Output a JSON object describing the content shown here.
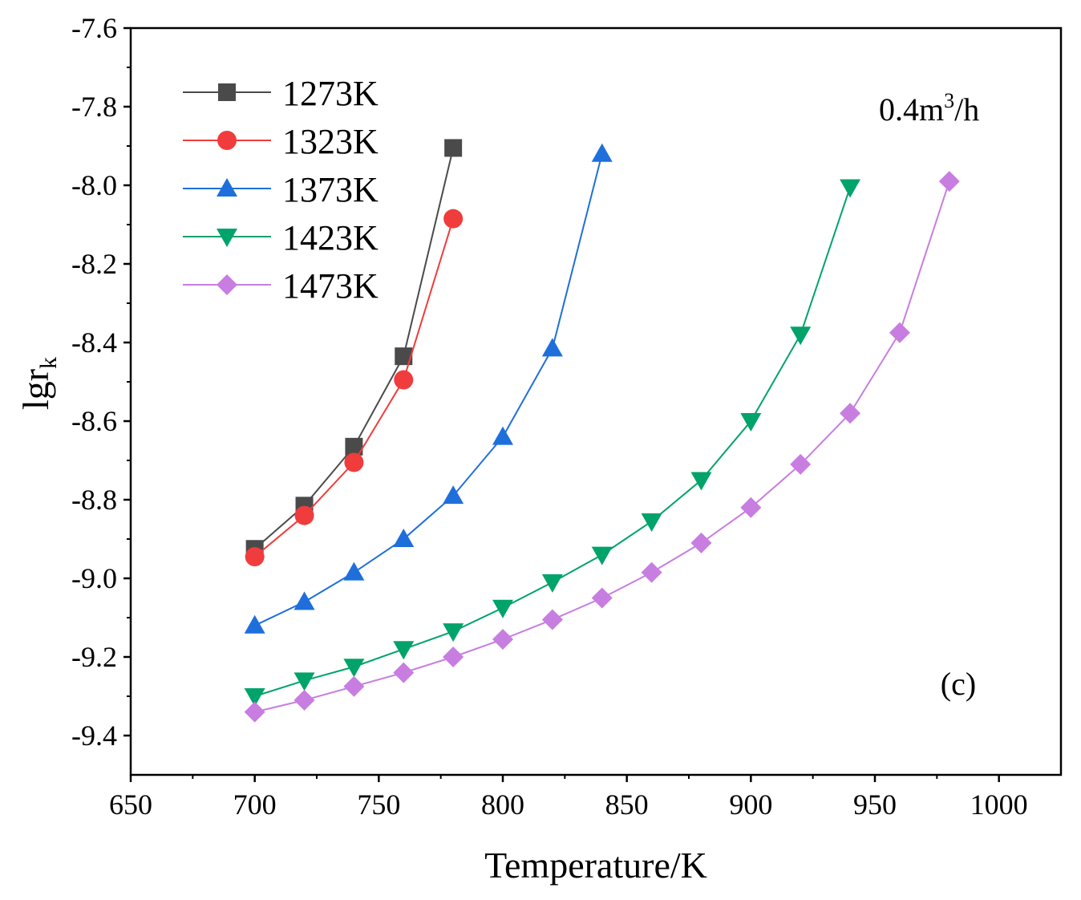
{
  "chart_data": {
    "type": "line",
    "title": "",
    "xlabel": "Temperature/K",
    "ylabel_main": "lgr",
    "ylabel_sub": "k",
    "xlim": [
      650,
      1025
    ],
    "ylim": [
      -9.5,
      -7.6
    ],
    "xticks": [
      650,
      700,
      750,
      800,
      850,
      900,
      950,
      1000
    ],
    "xtick_labels": [
      "650",
      "700",
      "750",
      "800",
      "850",
      "900",
      "950",
      "1000"
    ],
    "yticks": [
      -7.6,
      -7.8,
      -8.0,
      -8.2,
      -8.4,
      -8.6,
      -8.8,
      -9.0,
      -9.2,
      -9.4
    ],
    "ytick_labels": [
      "-7.6",
      "-7.8",
      "-8.0",
      "-8.2",
      "-8.4",
      "-8.6",
      "-8.8",
      "-9.0",
      "-9.2",
      "-9.4"
    ],
    "grid": false,
    "legend_position": "top-left",
    "annotation_flow": {
      "base": "0.4m",
      "sup": "3",
      "rest": "/h"
    },
    "annotation_panel": "(c)",
    "series": [
      {
        "name": "1273K",
        "color": "#4a4a4a",
        "marker": "square",
        "x": [
          700,
          720,
          740,
          760,
          780
        ],
        "y": [
          -8.925,
          -8.815,
          -8.665,
          -8.435,
          -7.905
        ]
      },
      {
        "name": "1323K",
        "color": "#f03c3c",
        "marker": "circle",
        "x": [
          700,
          720,
          740,
          760,
          780
        ],
        "y": [
          -8.945,
          -8.84,
          -8.705,
          -8.495,
          -8.085
        ]
      },
      {
        "name": "1373K",
        "color": "#1e6fdc",
        "marker": "triangle-up",
        "x": [
          700,
          720,
          740,
          760,
          780,
          800,
          820,
          840
        ],
        "y": [
          -9.12,
          -9.06,
          -8.985,
          -8.9,
          -8.79,
          -8.64,
          -8.415,
          -7.92
        ]
      },
      {
        "name": "1423K",
        "color": "#00a36a",
        "marker": "triangle-down",
        "x": [
          700,
          720,
          740,
          760,
          780,
          800,
          820,
          840,
          860,
          880,
          900,
          920,
          940
        ],
        "y": [
          -9.3,
          -9.26,
          -9.225,
          -9.18,
          -9.135,
          -9.075,
          -9.01,
          -8.94,
          -8.855,
          -8.75,
          -8.6,
          -8.38,
          -8.005
        ]
      },
      {
        "name": "1473K",
        "color": "#c77ee0",
        "marker": "diamond",
        "x": [
          700,
          720,
          740,
          760,
          780,
          800,
          820,
          840,
          860,
          880,
          900,
          920,
          940,
          960,
          980
        ],
        "y": [
          -9.34,
          -9.31,
          -9.275,
          -9.24,
          -9.2,
          -9.155,
          -9.105,
          -9.05,
          -8.985,
          -8.91,
          -8.82,
          -8.71,
          -8.58,
          -8.375,
          -7.99
        ]
      }
    ]
  }
}
